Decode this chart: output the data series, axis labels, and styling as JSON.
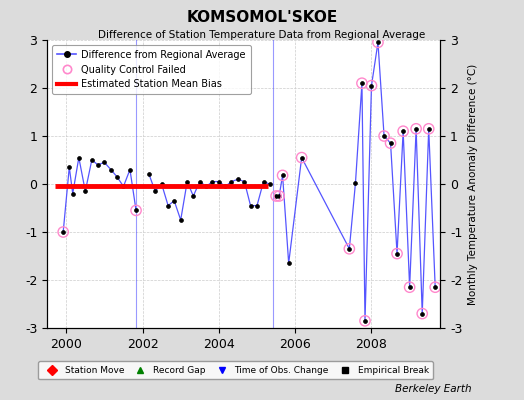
{
  "title": "KOMSOMOL'SKOE",
  "subtitle": "Difference of Station Temperature Data from Regional Average",
  "ylabel_right": "Monthly Temperature Anomaly Difference (°C)",
  "ylim": [
    -3,
    3
  ],
  "xlim": [
    1999.5,
    2009.8
  ],
  "xticks": [
    2000,
    2002,
    2004,
    2006,
    2008
  ],
  "yticks": [
    -3,
    -2,
    -1,
    0,
    1,
    2,
    3
  ],
  "bias_y": -0.05,
  "bias_x_start": 1999.7,
  "bias_x_end": 2005.3,
  "background_color": "#dcdcdc",
  "plot_bg_color": "#ffffff",
  "line_color": "#5555ff",
  "marker_color": "#000000",
  "bias_color": "#ff0000",
  "qc_color": "#ff88cc",
  "footnote": "Berkeley Earth",
  "gap_line_x": 2001.83,
  "time_obs_line_x": 2005.42,
  "segment1_x": [
    1999.92,
    2000.08,
    2000.17,
    2000.33,
    2000.5,
    2000.67,
    2000.83,
    2001.0,
    2001.17,
    2001.33,
    2001.5,
    2001.67,
    2001.83
  ],
  "segment1_y": [
    -1.0,
    0.35,
    -0.2,
    0.55,
    -0.15,
    0.5,
    0.4,
    0.45,
    0.3,
    0.15,
    -0.05,
    0.3,
    -0.55
  ],
  "segment2_x": [
    2002.17,
    2002.33,
    2002.5,
    2002.67,
    2002.83,
    2003.0,
    2003.17,
    2003.33,
    2003.5,
    2003.67,
    2003.83,
    2004.0,
    2004.17,
    2004.33,
    2004.5,
    2004.67,
    2004.83,
    2005.0,
    2005.17,
    2005.33
  ],
  "segment2_y": [
    0.2,
    -0.15,
    0.0,
    -0.45,
    -0.35,
    -0.75,
    0.05,
    -0.25,
    0.05,
    -0.05,
    0.05,
    0.05,
    -0.05,
    0.05,
    0.1,
    0.05,
    -0.45,
    -0.45,
    0.05,
    0.0
  ],
  "segment3_x": [
    2005.5,
    2005.58,
    2005.67,
    2005.83,
    2006.17,
    2007.42,
    2007.58,
    2007.75,
    2007.83,
    2008.0,
    2008.17,
    2008.33,
    2008.5,
    2008.67,
    2008.83,
    2009.0,
    2009.17,
    2009.33,
    2009.5,
    2009.67
  ],
  "segment3_y": [
    -0.25,
    -0.25,
    0.18,
    -1.65,
    0.55,
    -1.35,
    0.02,
    2.1,
    -2.85,
    2.05,
    2.95,
    1.0,
    0.85,
    -1.45,
    1.1,
    -2.15,
    1.15,
    -2.7,
    1.15,
    -2.15
  ],
  "qc_x": [
    1999.92,
    2001.83,
    2005.5,
    2005.58,
    2005.67,
    2006.17,
    2007.42,
    2007.75,
    2007.83,
    2008.0,
    2008.17,
    2008.33,
    2008.5,
    2008.67,
    2008.83,
    2009.0,
    2009.17,
    2009.33,
    2009.5,
    2009.67
  ],
  "qc_y": [
    -1.0,
    -0.55,
    -0.25,
    -0.25,
    0.18,
    0.55,
    -1.35,
    2.1,
    -2.85,
    2.05,
    2.95,
    1.0,
    0.85,
    -1.45,
    1.1,
    -2.15,
    1.15,
    -2.7,
    1.15,
    -2.15
  ]
}
